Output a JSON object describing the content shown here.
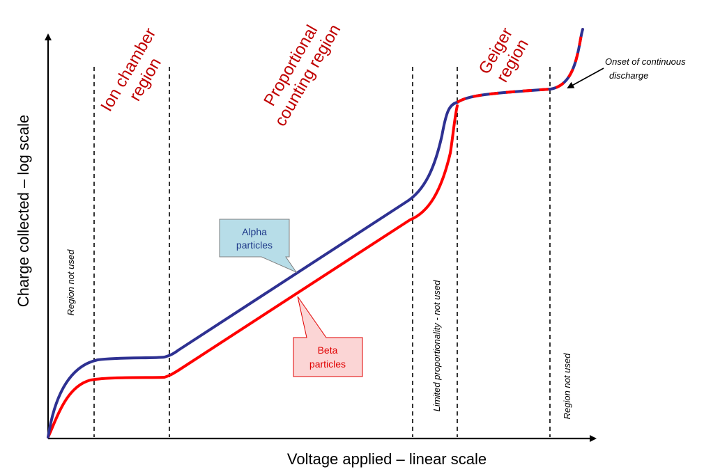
{
  "axes": {
    "x_label": "Voltage applied – linear scale",
    "y_label": "Charge collected – log scale"
  },
  "regions": {
    "ion_chamber": [
      "Ion chamber",
      "region"
    ],
    "proportional": [
      "Proportional",
      "counting region"
    ],
    "geiger": [
      "Geiger",
      "region"
    ]
  },
  "notes": {
    "region_not_used_left": "Region  not used",
    "limited_proportionality": "Limited proportionality - not used",
    "region_not_used_right": "Region  not used",
    "onset": [
      "Onset of continuous",
      "discharge"
    ]
  },
  "callouts": {
    "alpha": [
      "Alpha",
      "particles"
    ],
    "beta": [
      "Beta",
      "particles"
    ]
  },
  "colors": {
    "alpha": "#2e3192",
    "beta": "#ff0000",
    "region_title": "#c00000",
    "alpha_box_fill": "#b7dde8",
    "alpha_text": "#1f3a8a",
    "beta_box_fill": "#fbd5d5",
    "beta_text": "#e00000"
  }
}
